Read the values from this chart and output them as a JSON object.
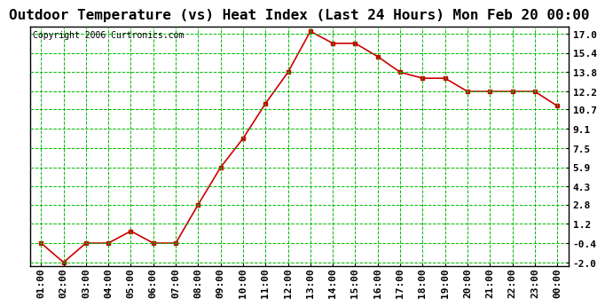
{
  "title": "Outdoor Temperature (vs) Heat Index (Last 24 Hours) Mon Feb 20 00:00",
  "copyright": "Copyright 2006 Curtronics.com",
  "x_labels": [
    "01:00",
    "02:00",
    "03:00",
    "04:00",
    "05:00",
    "06:00",
    "07:00",
    "08:00",
    "09:00",
    "10:00",
    "11:00",
    "12:00",
    "13:00",
    "14:00",
    "15:00",
    "16:00",
    "17:00",
    "18:00",
    "19:00",
    "20:00",
    "21:00",
    "22:00",
    "23:00",
    "00:00"
  ],
  "y_values": [
    -0.4,
    -2.0,
    -0.4,
    -0.4,
    0.6,
    -0.4,
    -0.4,
    2.8,
    5.9,
    8.3,
    11.2,
    13.8,
    17.2,
    16.2,
    16.2,
    15.1,
    13.8,
    13.3,
    13.3,
    12.2,
    12.2,
    12.2,
    12.2,
    11.0
  ],
  "yticks": [
    17.0,
    15.4,
    13.8,
    12.2,
    10.7,
    9.1,
    7.5,
    5.9,
    4.3,
    2.8,
    1.2,
    -0.4,
    -2.0
  ],
  "ylim": [
    -2.3,
    17.6
  ],
  "line_color": "#cc0000",
  "marker_color": "#cc0000",
  "bg_color": "#ffffff",
  "plot_bg_color": "#ffffff",
  "grid_color": "#00bb00",
  "title_fontsize": 11.5,
  "copyright_fontsize": 7,
  "tick_fontsize": 8,
  "border_color": "#000000"
}
